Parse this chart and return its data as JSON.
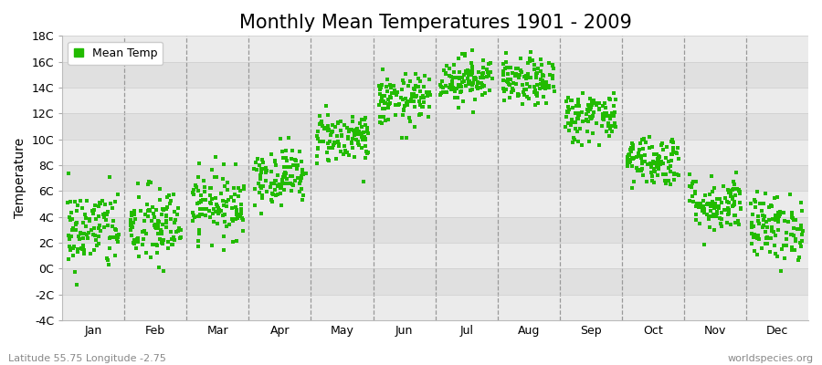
{
  "title": "Monthly Mean Temperatures 1901 - 2009",
  "ylabel": "Temperature",
  "subtitle_left": "Latitude 55.75 Longitude -2.75",
  "subtitle_right": "worldspecies.org",
  "dot_color": "#22bb00",
  "background_light": "#ebebeb",
  "background_dark": "#e0e0e0",
  "fig_bg": "#ffffff",
  "ylim": [
    -4,
    18
  ],
  "yticks": [
    -4,
    -2,
    0,
    2,
    4,
    6,
    8,
    10,
    12,
    14,
    16,
    18
  ],
  "months": [
    "Jan",
    "Feb",
    "Mar",
    "Apr",
    "May",
    "Jun",
    "Jul",
    "Aug",
    "Sep",
    "Oct",
    "Nov",
    "Dec"
  ],
  "monthly_means": [
    3.0,
    3.2,
    5.0,
    7.2,
    10.2,
    13.0,
    14.7,
    14.4,
    11.8,
    8.4,
    5.0,
    3.2
  ],
  "monthly_stds": [
    1.6,
    1.6,
    1.3,
    1.1,
    1.0,
    1.0,
    0.9,
    0.9,
    1.0,
    1.0,
    1.1,
    1.3
  ],
  "n_years": 109,
  "seed": 42,
  "title_fontsize": 15,
  "axis_label_fontsize": 10,
  "tick_fontsize": 9,
  "legend_fontsize": 9,
  "marker_size": 3.5
}
